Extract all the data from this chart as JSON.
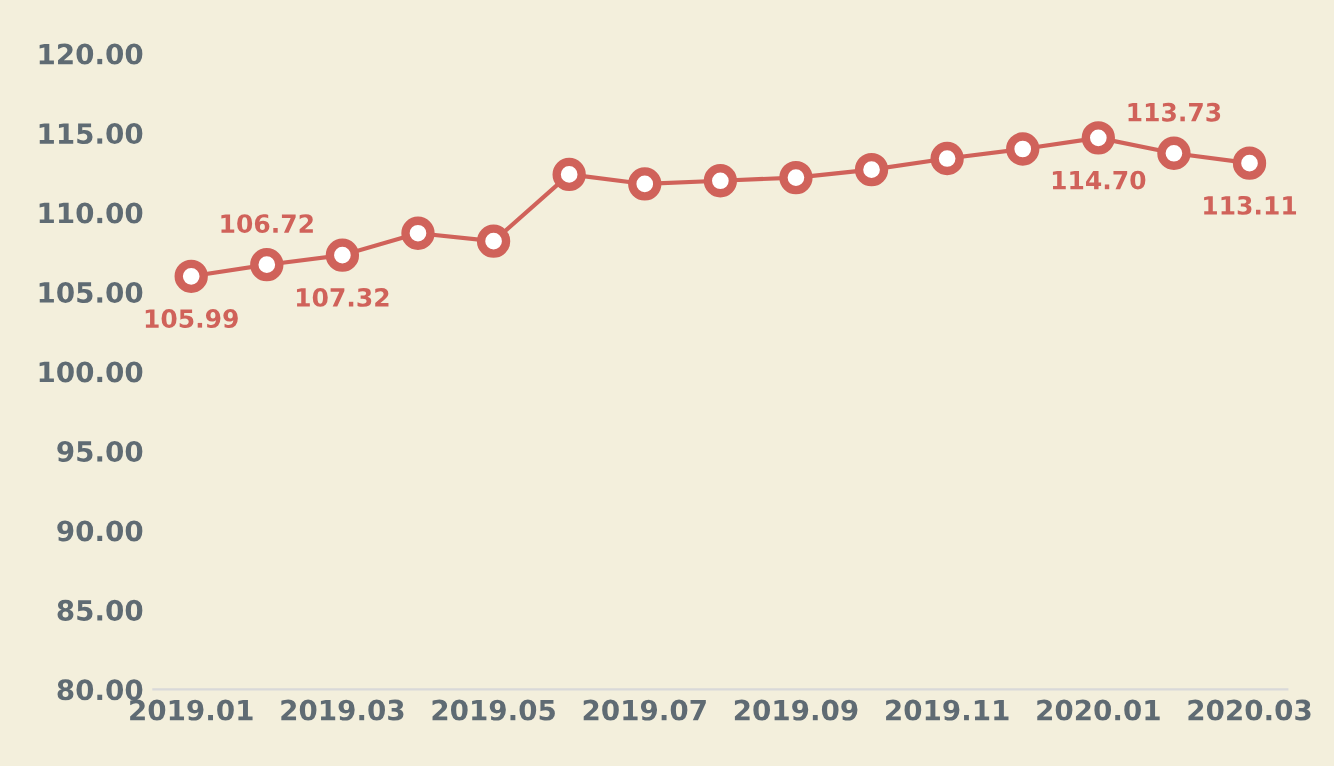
{
  "chart_data": {
    "type": "line",
    "categories": [
      "2019.01",
      null,
      "2019.03",
      null,
      "2019.05",
      null,
      "2019.07",
      null,
      "2019.09",
      null,
      "2019.11",
      null,
      "2020.01",
      null,
      "2020.03"
    ],
    "series": [
      {
        "color": "#d0625a",
        "values": [
          105.99,
          106.72,
          107.32,
          108.7,
          108.2,
          112.4,
          111.8,
          112.0,
          112.2,
          112.7,
          113.4,
          114.0,
          114.7,
          113.73,
          113.11
        ],
        "value_labels": [
          "105.99",
          "106.72",
          "107.32",
          null,
          null,
          null,
          null,
          null,
          null,
          null,
          null,
          null,
          "114.70",
          "113.73",
          "113.11"
        ]
      }
    ],
    "ylim": [
      80,
      120
    ],
    "yticks": [
      {
        "value": 80,
        "label": "80.00"
      },
      {
        "value": 85,
        "label": "85.00"
      },
      {
        "value": 90,
        "label": "90.00"
      },
      {
        "value": 95,
        "label": "95.00"
      },
      {
        "value": 100,
        "label": "100.00"
      },
      {
        "value": 105,
        "label": "105.00"
      },
      {
        "value": 110,
        "label": "110.00"
      },
      {
        "value": 115,
        "label": "115.00"
      },
      {
        "value": 120,
        "label": "120.00"
      }
    ],
    "grid": false,
    "legend": false,
    "marker": "circle",
    "line_style": "solid"
  }
}
